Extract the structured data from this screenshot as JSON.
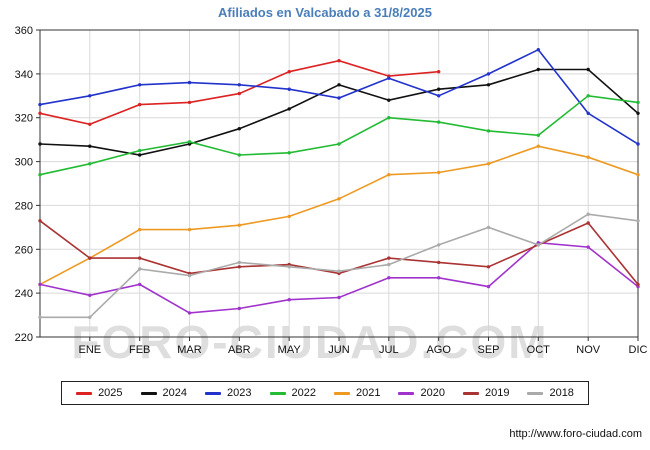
{
  "title": "Afiliados en Valcabado a 31/8/2025",
  "watermark": "FORO-CIUDAD.COM",
  "source_url": "http://www.foro-ciudad.com",
  "chart_data": {
    "type": "line",
    "title": "Afiliados en Valcabado a 31/8/2025",
    "x_labels": [
      "ENE",
      "FEB",
      "MAR",
      "ABR",
      "MAY",
      "JUN",
      "JUL",
      "AGO",
      "SEP",
      "OCT",
      "NOV",
      "DIC"
    ],
    "x_note": "first value of each series sits on the y-axis, following values fall on the month ticks",
    "ylim": [
      220,
      360
    ],
    "y_ticks": [
      220,
      240,
      260,
      280,
      300,
      320,
      340,
      360
    ],
    "grid": true,
    "legend_position": "bottom",
    "series": [
      {
        "name": "2025",
        "color": "#dd2222",
        "values": [
          322,
          317,
          326,
          327,
          331,
          341,
          346,
          339,
          341
        ]
      },
      {
        "name": "2024",
        "color": "#111111",
        "values": [
          308,
          307,
          303,
          308,
          315,
          324,
          335,
          328,
          333,
          335,
          342,
          342,
          322
        ]
      },
      {
        "name": "2023",
        "color": "#2233cc",
        "values": [
          326,
          330,
          335,
          336,
          335,
          333,
          329,
          338,
          330,
          340,
          351,
          322,
          308
        ]
      },
      {
        "name": "2022",
        "color": "#22bb33",
        "values": [
          294,
          299,
          305,
          309,
          303,
          304,
          308,
          320,
          318,
          314,
          312,
          330,
          327
        ]
      },
      {
        "name": "2021",
        "color": "#ee9922",
        "values": [
          244,
          256,
          269,
          269,
          271,
          275,
          283,
          294,
          295,
          299,
          307,
          302,
          294
        ]
      },
      {
        "name": "2020",
        "color": "#a033cc",
        "values": [
          244,
          239,
          244,
          231,
          233,
          237,
          238,
          247,
          247,
          243,
          263,
          261,
          243
        ]
      },
      {
        "name": "2019",
        "color": "#aa3333",
        "values": [
          273,
          256,
          256,
          249,
          252,
          253,
          249,
          256,
          254,
          252,
          262,
          272,
          244
        ]
      },
      {
        "name": "2018",
        "color": "#aaaaaa",
        "values": [
          229,
          229,
          251,
          248,
          254,
          252,
          250,
          253,
          262,
          270,
          262,
          276,
          273
        ]
      }
    ]
  }
}
